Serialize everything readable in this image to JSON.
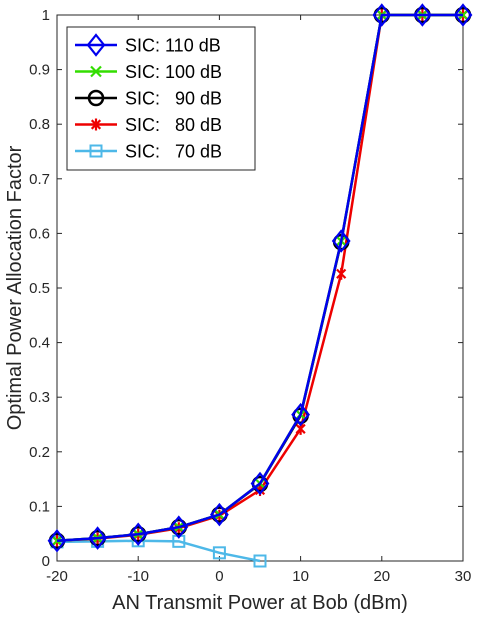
{
  "chart_data": {
    "type": "line",
    "xlabel": "AN Transmit Power at Bob (dBm)",
    "ylabel": "Optimal Power Allocation Factor",
    "xlim": [
      -20,
      30
    ],
    "ylim": [
      0,
      1
    ],
    "xticks": [
      -20,
      -10,
      0,
      10,
      20,
      30
    ],
    "yticks": [
      0,
      0.1,
      0.2,
      0.3,
      0.4,
      0.5,
      0.6,
      0.7,
      0.8,
      0.9,
      1
    ],
    "grid": false,
    "box": true,
    "legend_position": "top-left",
    "series": [
      {
        "name": "SIC: 110 dB",
        "color": "#0000ee",
        "marker": "diamond",
        "x": [
          -20,
          -15,
          -10,
          -5,
          0,
          5,
          10,
          15,
          20,
          25,
          30
        ],
        "y": [
          0.037,
          0.042,
          0.049,
          0.062,
          0.085,
          0.142,
          0.268,
          0.586,
          1.0,
          1.0,
          1.0
        ]
      },
      {
        "name": "SIC: 100 dB",
        "color": "#33dd00",
        "marker": "x",
        "x": [
          -20,
          -15,
          -10,
          -5,
          0,
          5,
          10,
          15,
          20,
          25,
          30
        ],
        "y": [
          0.037,
          0.042,
          0.049,
          0.062,
          0.085,
          0.142,
          0.268,
          0.586,
          1.0,
          1.0,
          1.0
        ]
      },
      {
        "name": "SIC:   90 dB",
        "color": "#000000",
        "marker": "circle",
        "x": [
          -20,
          -15,
          -10,
          -5,
          0,
          5,
          10,
          15,
          20,
          25,
          30
        ],
        "y": [
          0.037,
          0.042,
          0.049,
          0.062,
          0.085,
          0.141,
          0.266,
          0.584,
          1.0,
          1.0,
          1.0
        ]
      },
      {
        "name": "SIC:   80 dB",
        "color": "#ee0000",
        "marker": "asterisk",
        "x": [
          -20,
          -15,
          -10,
          -5,
          0,
          5,
          10,
          15,
          20,
          25,
          30
        ],
        "y": [
          0.037,
          0.041,
          0.048,
          0.06,
          0.083,
          0.13,
          0.242,
          0.526,
          1.0,
          1.0,
          1.0
        ]
      },
      {
        "name": "SIC:   70 dB",
        "color": "#4db8e8",
        "marker": "square",
        "x": [
          -20,
          -15,
          -10,
          -5,
          0,
          5
        ],
        "y": [
          0.035,
          0.036,
          0.037,
          0.036,
          0.015,
          0.0
        ]
      }
    ]
  }
}
